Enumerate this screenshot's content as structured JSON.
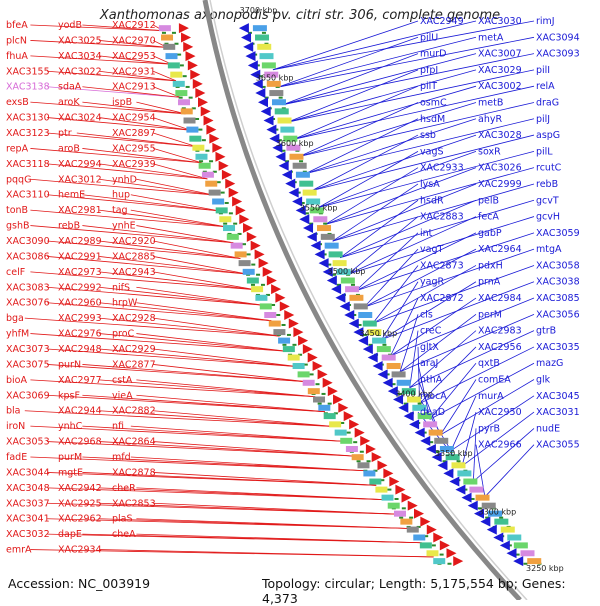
{
  "title": "Xanthomonas axonopodis pv. citri str. 306, complete genome",
  "footer": {
    "accession": "Accession: NC_003919",
    "info": "Topology: circular; Length: 5,175,554 bp; Genes: 4,373"
  },
  "colors": {
    "forward_strand": "#e11919",
    "reverse_strand": "#1a1ad6",
    "rna_label": "#d76bd7",
    "backbone": "#888888",
    "tick_marks": "#2a8a2a"
  },
  "ticks": [
    "3700 kbp",
    "3650 kbp",
    "3600 kbp",
    "3550 kbp",
    "3500 kbp",
    "3450 kbp",
    "3400 kbp",
    "3350 kbp",
    "3300 kbp",
    "3250 kbp"
  ],
  "left_labels": [
    "bfeA",
    "plcN",
    "fhuA",
    "XAC3155",
    "XAC3138",
    "exsB",
    "XAC3130",
    "XAC3123",
    "repA",
    "XAC3118",
    "pqqG",
    "XAC3110",
    "tonB",
    "gshB",
    "XAC3090",
    "XAC3086",
    "celF",
    "XAC3083",
    "XAC3076",
    "bga",
    "yhfM",
    "XAC3073",
    "XAC3075",
    "bioA",
    "XAC3069",
    "bla",
    "iroN",
    "XAC3053",
    "fadE",
    "XAC3044",
    "XAC3048",
    "XAC3037",
    "XAC3041",
    "XAC3032",
    "emrA",
    "yodB",
    "XAC3025",
    "XAC3034",
    "XAC3022",
    "sdaA",
    "aroK",
    "XAC3024",
    "ptr",
    "aroB",
    "XAC2994",
    "XAC3012",
    "hemE",
    "XAC2981",
    "rebB",
    "XAC2989",
    "XAC2991",
    "XAC2973",
    "XAC2992",
    "XAC2960",
    "XAC2993",
    "XAC2976",
    "XAC2948",
    "purN",
    "XAC2977",
    "kpsF",
    "XAC2944",
    "ynhC",
    "XAC2968",
    "purM",
    "mgtE",
    "XAC2942",
    "XAC2925",
    "XAC2962",
    "dapE",
    "XAC2934",
    "XAC2912",
    "XAC2970",
    "XAC2953",
    "XAC2931",
    "XAC2913",
    "ispB",
    "XAC2954",
    "XAC2897",
    "XAC2955",
    "XAC2939",
    "ynhD",
    "hup",
    "tag",
    "ynhE",
    "XAC2920",
    "XAC2885",
    "XAC2943",
    "nifS",
    "hrpW",
    "XAC2928",
    "proC",
    "XAC2929",
    "XAC2877",
    "cstA",
    "vieA",
    "XAC2882",
    "nfi",
    "XAC2864",
    "mfd",
    "XAC2878",
    "cheR",
    "XAC2853",
    "plaS",
    "cheA"
  ],
  "right_labels": [
    "rimJ",
    "XAC3094",
    "XAC3093",
    "pilI",
    "relA",
    "draG",
    "pilJ",
    "aspG",
    "pilL",
    "rcutC",
    "rebB",
    "gcvT",
    "gcvH",
    "XAC3059",
    "mtgA",
    "XAC3058",
    "XAC3038",
    "XAC3085",
    "XAC3056",
    "gtrB",
    "XAC3035",
    "mazG",
    "glk",
    "XAC3045",
    "XAC3031",
    "nudE",
    "XAC3055",
    "XAC3030",
    "metA",
    "XAC3007",
    "XAC3029",
    "XAC3002",
    "metB",
    "ahyR",
    "XAC3028",
    "soxR",
    "XAC3026",
    "XAC2999",
    "pelB",
    "fecA",
    "gabP",
    "XAC2964",
    "pdxH",
    "prnA",
    "XAC2984",
    "perM",
    "XAC2983",
    "XAC2956",
    "qxtB",
    "comEA",
    "murA",
    "XAC2950",
    "pyrB",
    "XAC2966",
    "XAC2949",
    "pilU",
    "murD",
    "pfpI",
    "pilT",
    "osmC",
    "hsdM",
    "ssb",
    "vagS",
    "XAC2933",
    "lysA",
    "hsdR",
    "XAC2883",
    "int",
    "vagT",
    "XAC2873",
    "yagR",
    "XAC2872",
    "cls",
    "creC",
    "gltX",
    "araJ",
    "nthA",
    "mocA",
    "deaD"
  ]
}
